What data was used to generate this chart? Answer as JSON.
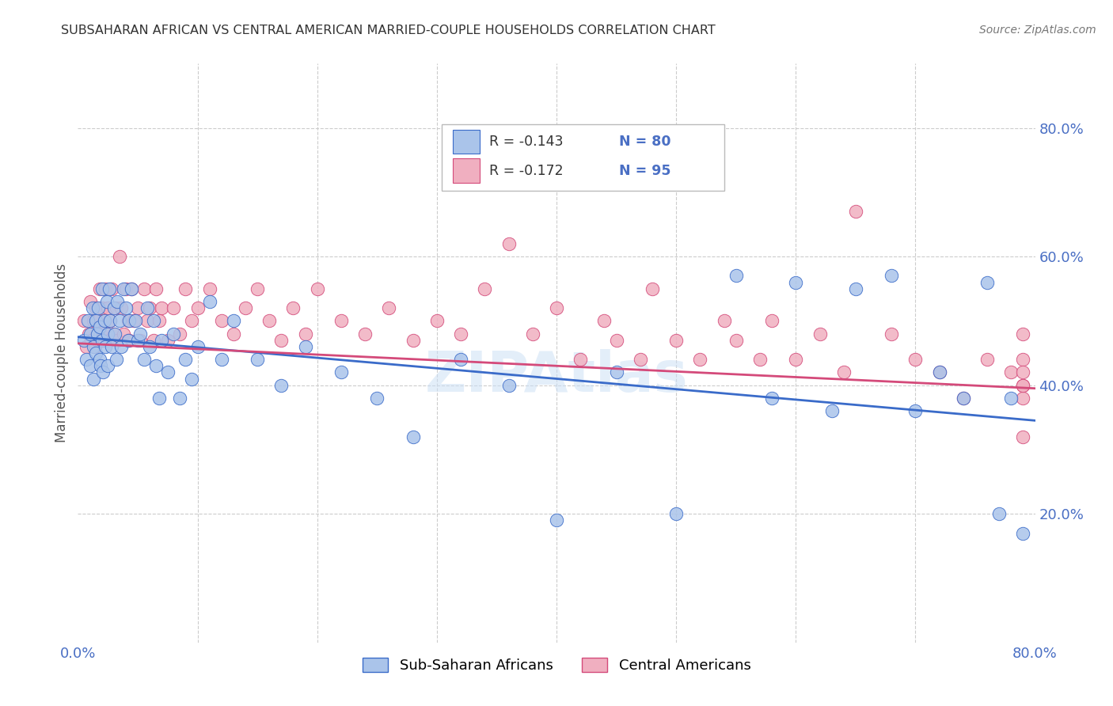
{
  "title": "SUBSAHARAN AFRICAN VS CENTRAL AMERICAN MARRIED-COUPLE HOUSEHOLDS CORRELATION CHART",
  "source": "Source: ZipAtlas.com",
  "ylabel": "Married-couple Households",
  "xlim": [
    0.0,
    0.8
  ],
  "ylim": [
    0.0,
    0.9
  ],
  "xticks": [
    0.0,
    0.1,
    0.2,
    0.3,
    0.4,
    0.5,
    0.6,
    0.7,
    0.8
  ],
  "xticklabels": [
    "0.0%",
    "",
    "",
    "",
    "",
    "",
    "",
    "",
    "80.0%"
  ],
  "yticks_right": [
    0.2,
    0.4,
    0.6,
    0.8
  ],
  "ytick_right_labels": [
    "20.0%",
    "40.0%",
    "60.0%",
    "80.0%"
  ],
  "blue_R": -0.143,
  "blue_N": 80,
  "pink_R": -0.172,
  "pink_N": 95,
  "blue_color": "#aac4ea",
  "pink_color": "#f0afc0",
  "blue_line_color": "#3a6bc9",
  "pink_line_color": "#d44a7a",
  "title_color": "#333333",
  "axis_label_color": "#4a6fc4",
  "watermark": "ZIPAtlas",
  "legend_labels": [
    "Sub-Saharan Africans",
    "Central Americans"
  ],
  "blue_trend_x0": 0.0,
  "blue_trend_y0": 0.475,
  "blue_trend_x1": 0.8,
  "blue_trend_y1": 0.345,
  "pink_trend_x0": 0.0,
  "pink_trend_y0": 0.465,
  "pink_trend_x1": 0.8,
  "pink_trend_y1": 0.395,
  "blue_scatter_x": [
    0.005,
    0.007,
    0.008,
    0.01,
    0.01,
    0.012,
    0.013,
    0.013,
    0.015,
    0.015,
    0.016,
    0.017,
    0.018,
    0.018,
    0.019,
    0.02,
    0.02,
    0.021,
    0.022,
    0.023,
    0.024,
    0.025,
    0.025,
    0.026,
    0.027,
    0.028,
    0.03,
    0.031,
    0.032,
    0.033,
    0.035,
    0.036,
    0.038,
    0.04,
    0.042,
    0.043,
    0.045,
    0.048,
    0.05,
    0.052,
    0.055,
    0.058,
    0.06,
    0.063,
    0.065,
    0.068,
    0.07,
    0.075,
    0.08,
    0.085,
    0.09,
    0.095,
    0.1,
    0.11,
    0.12,
    0.13,
    0.15,
    0.17,
    0.19,
    0.22,
    0.25,
    0.28,
    0.32,
    0.36,
    0.4,
    0.45,
    0.5,
    0.55,
    0.58,
    0.6,
    0.63,
    0.65,
    0.68,
    0.7,
    0.72,
    0.74,
    0.76,
    0.77,
    0.78,
    0.79
  ],
  "blue_scatter_y": [
    0.47,
    0.44,
    0.5,
    0.48,
    0.43,
    0.52,
    0.46,
    0.41,
    0.5,
    0.45,
    0.48,
    0.52,
    0.44,
    0.49,
    0.43,
    0.55,
    0.47,
    0.42,
    0.5,
    0.46,
    0.53,
    0.48,
    0.43,
    0.55,
    0.5,
    0.46,
    0.52,
    0.48,
    0.44,
    0.53,
    0.5,
    0.46,
    0.55,
    0.52,
    0.47,
    0.5,
    0.55,
    0.5,
    0.47,
    0.48,
    0.44,
    0.52,
    0.46,
    0.5,
    0.43,
    0.38,
    0.47,
    0.42,
    0.48,
    0.38,
    0.44,
    0.41,
    0.46,
    0.53,
    0.44,
    0.5,
    0.44,
    0.4,
    0.46,
    0.42,
    0.38,
    0.32,
    0.44,
    0.4,
    0.19,
    0.42,
    0.2,
    0.57,
    0.38,
    0.56,
    0.36,
    0.55,
    0.57,
    0.36,
    0.42,
    0.38,
    0.56,
    0.2,
    0.38,
    0.17
  ],
  "pink_scatter_x": [
    0.005,
    0.007,
    0.009,
    0.01,
    0.011,
    0.013,
    0.014,
    0.015,
    0.016,
    0.017,
    0.018,
    0.019,
    0.02,
    0.021,
    0.022,
    0.023,
    0.024,
    0.025,
    0.026,
    0.027,
    0.028,
    0.03,
    0.032,
    0.033,
    0.035,
    0.036,
    0.038,
    0.04,
    0.042,
    0.043,
    0.045,
    0.047,
    0.05,
    0.052,
    0.055,
    0.058,
    0.06,
    0.063,
    0.065,
    0.068,
    0.07,
    0.075,
    0.08,
    0.085,
    0.09,
    0.095,
    0.1,
    0.11,
    0.12,
    0.13,
    0.14,
    0.15,
    0.16,
    0.17,
    0.18,
    0.19,
    0.2,
    0.22,
    0.24,
    0.26,
    0.28,
    0.3,
    0.32,
    0.34,
    0.36,
    0.38,
    0.4,
    0.42,
    0.44,
    0.45,
    0.47,
    0.48,
    0.5,
    0.52,
    0.54,
    0.55,
    0.57,
    0.58,
    0.6,
    0.62,
    0.64,
    0.65,
    0.68,
    0.7,
    0.72,
    0.74,
    0.76,
    0.78,
    0.79,
    0.79,
    0.79,
    0.79,
    0.79,
    0.79,
    0.79
  ],
  "pink_scatter_y": [
    0.5,
    0.46,
    0.48,
    0.53,
    0.47,
    0.5,
    0.46,
    0.52,
    0.47,
    0.5,
    0.55,
    0.48,
    0.52,
    0.47,
    0.5,
    0.55,
    0.48,
    0.52,
    0.47,
    0.5,
    0.55,
    0.48,
    0.52,
    0.47,
    0.6,
    0.52,
    0.48,
    0.55,
    0.5,
    0.47,
    0.55,
    0.5,
    0.52,
    0.47,
    0.55,
    0.5,
    0.52,
    0.47,
    0.55,
    0.5,
    0.52,
    0.47,
    0.52,
    0.48,
    0.55,
    0.5,
    0.52,
    0.55,
    0.5,
    0.48,
    0.52,
    0.55,
    0.5,
    0.47,
    0.52,
    0.48,
    0.55,
    0.5,
    0.48,
    0.52,
    0.47,
    0.5,
    0.48,
    0.55,
    0.62,
    0.48,
    0.52,
    0.44,
    0.5,
    0.47,
    0.44,
    0.55,
    0.47,
    0.44,
    0.5,
    0.47,
    0.44,
    0.5,
    0.44,
    0.48,
    0.42,
    0.67,
    0.48,
    0.44,
    0.42,
    0.38,
    0.44,
    0.42,
    0.32,
    0.4,
    0.38,
    0.44,
    0.42,
    0.48,
    0.4
  ]
}
